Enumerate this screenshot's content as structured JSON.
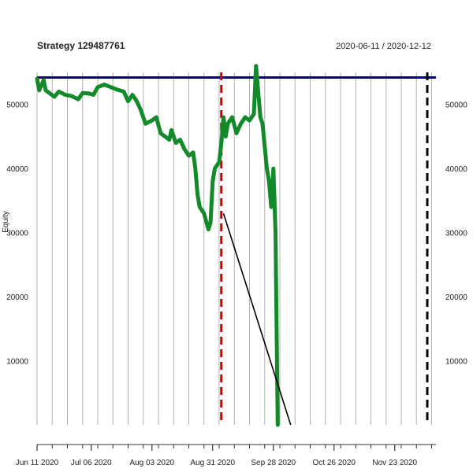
{
  "chart_data": {
    "type": "line",
    "title": "Strategy 129487761",
    "date_range": "2020-06-11 / 2020-12-12",
    "ylabel": "Equity",
    "xlim": [
      "2020-06-11",
      "2020-12-12"
    ],
    "ylim": [
      0,
      55000
    ],
    "grid": true,
    "x_ticks": [
      {
        "date": "2020-06-11",
        "label": "Jun 11 2020"
      },
      {
        "date": "2020-07-06",
        "label": "Jul 06 2020"
      },
      {
        "date": "2020-08-03",
        "label": "Aug 03 2020"
      },
      {
        "date": "2020-08-31",
        "label": "Aug 31 2020"
      },
      {
        "date": "2020-09-28",
        "label": "Sep 28 2020"
      },
      {
        "date": "2020-10-26",
        "label": "Oct 26 2020"
      },
      {
        "date": "2020-11-23",
        "label": "Nov 23 2020"
      }
    ],
    "y_ticks": [
      {
        "value": 10000,
        "label": "10000"
      },
      {
        "value": 20000,
        "label": "20000"
      },
      {
        "value": 30000,
        "label": "30000"
      },
      {
        "value": 40000,
        "label": "40000"
      },
      {
        "value": 50000,
        "label": "50000"
      }
    ],
    "colors": {
      "equity": "#138a2a",
      "reference_line": "#00007a",
      "marker_red": "#cc0000",
      "marker_black": "#000000",
      "trend": "#000000",
      "grid": "#b0b0b0",
      "axis": "#333333"
    },
    "reference_line": {
      "value": 54200
    },
    "vertical_markers": [
      {
        "date": "2020-09-04",
        "color": "red",
        "style": "dashed"
      },
      {
        "date": "2020-12-08",
        "color": "black",
        "style": "dashed"
      }
    ],
    "trend_line": {
      "start": {
        "x": "2020-09-05",
        "y": 33000
      },
      "end": {
        "x": "2020-10-06",
        "y": 0
      }
    },
    "series": [
      {
        "values": [
          {
            "x": "2020-06-11",
            "y": 54000
          },
          {
            "x": "2020-06-12",
            "y": 52200
          },
          {
            "x": "2020-06-14",
            "y": 53800
          },
          {
            "x": "2020-06-15",
            "y": 52200
          },
          {
            "x": "2020-06-17",
            "y": 51700
          },
          {
            "x": "2020-06-19",
            "y": 51200
          },
          {
            "x": "2020-06-21",
            "y": 52000
          },
          {
            "x": "2020-06-24",
            "y": 51500
          },
          {
            "x": "2020-06-27",
            "y": 51300
          },
          {
            "x": "2020-06-30",
            "y": 50800
          },
          {
            "x": "2020-07-02",
            "y": 51800
          },
          {
            "x": "2020-07-05",
            "y": 51700
          },
          {
            "x": "2020-07-07",
            "y": 51500
          },
          {
            "x": "2020-07-09",
            "y": 52700
          },
          {
            "x": "2020-07-12",
            "y": 53100
          },
          {
            "x": "2020-07-15",
            "y": 52700
          },
          {
            "x": "2020-07-18",
            "y": 52300
          },
          {
            "x": "2020-07-21",
            "y": 52000
          },
          {
            "x": "2020-07-23",
            "y": 50500
          },
          {
            "x": "2020-07-25",
            "y": 51500
          },
          {
            "x": "2020-07-27",
            "y": 50500
          },
          {
            "x": "2020-07-29",
            "y": 49000
          },
          {
            "x": "2020-07-31",
            "y": 47000
          },
          {
            "x": "2020-08-03",
            "y": 47500
          },
          {
            "x": "2020-08-05",
            "y": 48000
          },
          {
            "x": "2020-08-07",
            "y": 45500
          },
          {
            "x": "2020-08-09",
            "y": 45000
          },
          {
            "x": "2020-08-11",
            "y": 44500
          },
          {
            "x": "2020-08-12",
            "y": 46000
          },
          {
            "x": "2020-08-14",
            "y": 44000
          },
          {
            "x": "2020-08-16",
            "y": 44500
          },
          {
            "x": "2020-08-18",
            "y": 43000
          },
          {
            "x": "2020-08-20",
            "y": 42000
          },
          {
            "x": "2020-08-22",
            "y": 42500
          },
          {
            "x": "2020-08-23",
            "y": 40000
          },
          {
            "x": "2020-08-24",
            "y": 36000
          },
          {
            "x": "2020-08-25",
            "y": 34000
          },
          {
            "x": "2020-08-27",
            "y": 33000
          },
          {
            "x": "2020-08-29",
            "y": 30500
          },
          {
            "x": "2020-08-30",
            "y": 31500
          },
          {
            "x": "2020-08-31",
            "y": 38000
          },
          {
            "x": "2020-09-01",
            "y": 40000
          },
          {
            "x": "2020-09-03",
            "y": 41000
          },
          {
            "x": "2020-09-04",
            "y": 44000
          },
          {
            "x": "2020-09-05",
            "y": 48000
          },
          {
            "x": "2020-09-06",
            "y": 45000
          },
          {
            "x": "2020-09-07",
            "y": 47000
          },
          {
            "x": "2020-09-09",
            "y": 48000
          },
          {
            "x": "2020-09-11",
            "y": 45500
          },
          {
            "x": "2020-09-13",
            "y": 47000
          },
          {
            "x": "2020-09-15",
            "y": 48000
          },
          {
            "x": "2020-09-17",
            "y": 47500
          },
          {
            "x": "2020-09-19",
            "y": 48500
          },
          {
            "x": "2020-09-20",
            "y": 56000
          },
          {
            "x": "2020-09-21",
            "y": 52000
          },
          {
            "x": "2020-09-22",
            "y": 48000
          },
          {
            "x": "2020-09-23",
            "y": 47000
          },
          {
            "x": "2020-09-25",
            "y": 40000
          },
          {
            "x": "2020-09-26",
            "y": 38000
          },
          {
            "x": "2020-09-27",
            "y": 34000
          },
          {
            "x": "2020-09-28",
            "y": 40000
          },
          {
            "x": "2020-09-29",
            "y": 30000
          },
          {
            "x": "2020-09-30",
            "y": 0
          }
        ]
      }
    ]
  }
}
